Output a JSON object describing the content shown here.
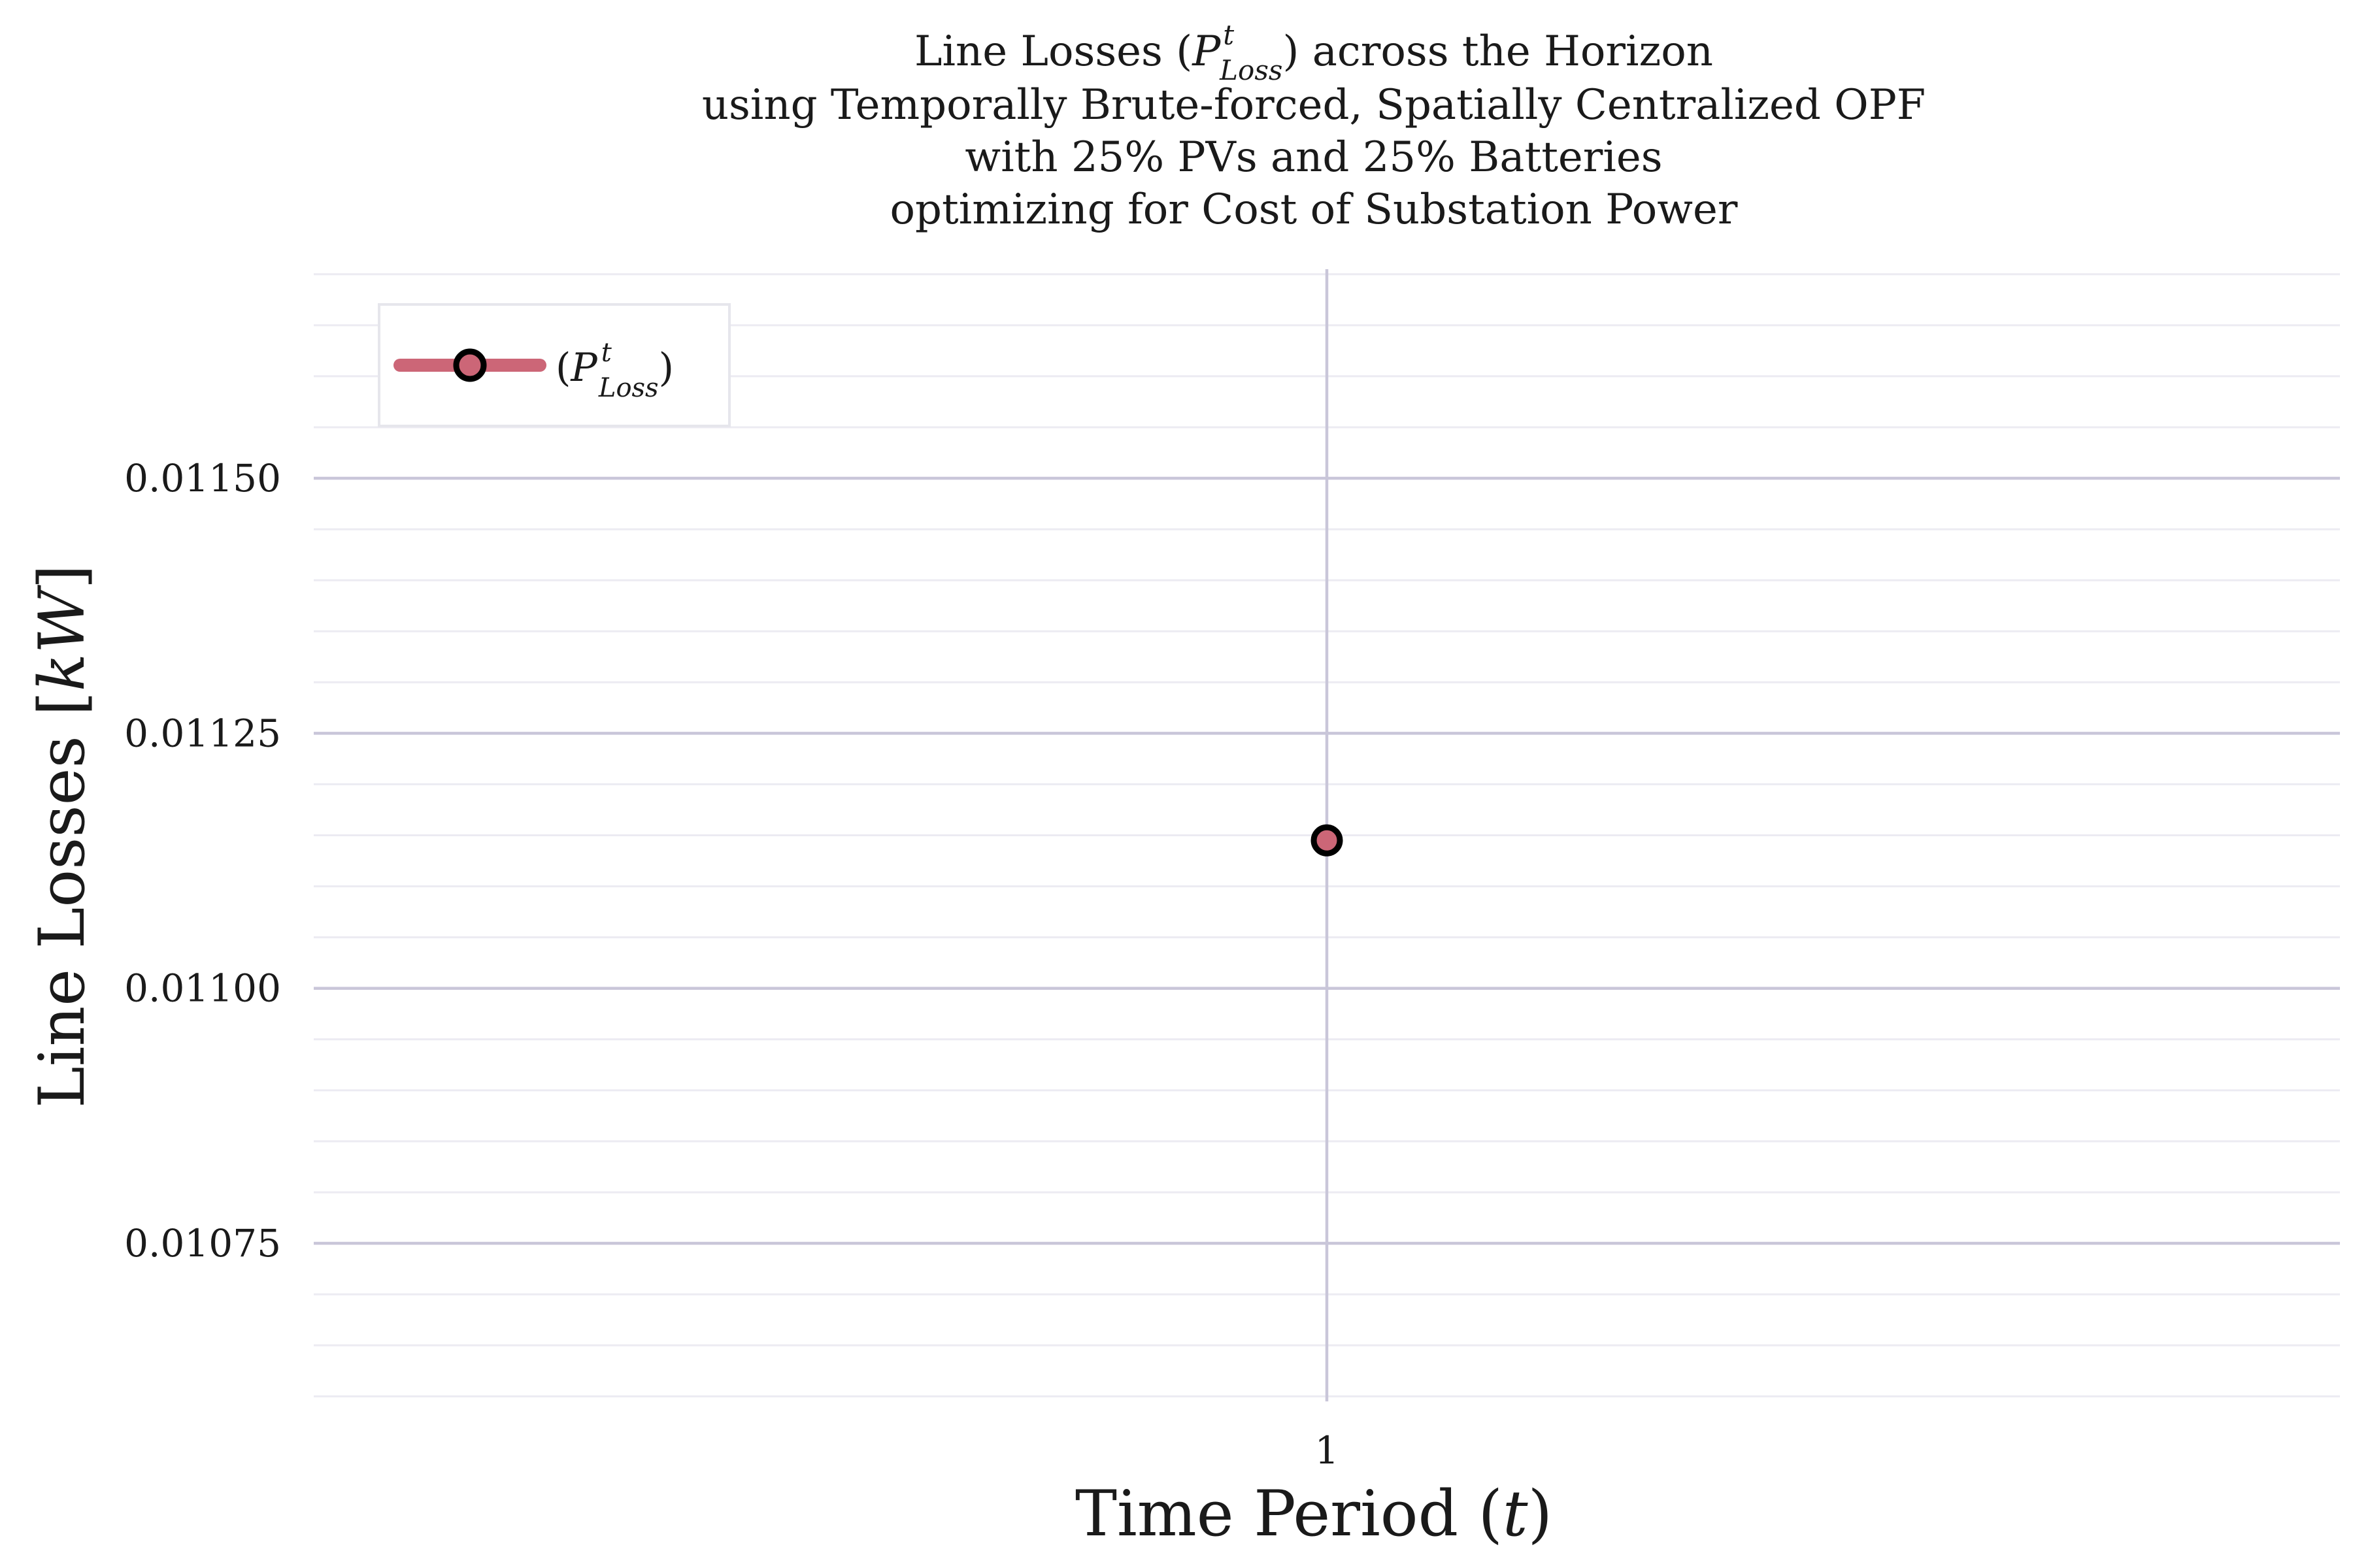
{
  "chart_data": {
    "type": "line",
    "title": {
      "line1_prefix": "Line Losses (",
      "line1_math_base": "P",
      "line1_math_sup": "t",
      "line1_math_sub": "Loss",
      "line1_suffix": ") across the Horizon",
      "line2": "using Temporally Brute-forced, Spatially Centralized OPF",
      "line3": "with 25% PVs and 25% Batteries",
      "line4": "optimizing for Cost of Substation Power"
    },
    "xlabel": {
      "prefix": "Time Period (",
      "math": "t",
      "suffix": ")"
    },
    "ylabel": {
      "prefix": "Line Losses [",
      "math": "kW",
      "suffix": "]"
    },
    "x": [
      1
    ],
    "x_tick_labels": [
      "1"
    ],
    "series": [
      {
        "name": "(P^t_Loss)",
        "name_prefix": "(",
        "name_math_base": "P",
        "name_math_sup": "t",
        "name_math_sub": "Loss",
        "name_suffix": ")",
        "values": [
          0.011145
        ],
        "color": "#cc6677",
        "marker_edge_color": "#000000"
      }
    ],
    "ylim": [
      0.010595,
      0.011705
    ],
    "xlim": [
      0,
      2
    ],
    "y_ticks": [
      0.01075,
      0.011,
      0.01125,
      0.0115
    ],
    "y_tick_labels": [
      "0.01075",
      "0.01100",
      "0.01125",
      "0.01150"
    ],
    "grid": true,
    "minor_grid": true,
    "legend_position": "top-left",
    "colors": {
      "major_grid": "#c9c6d9",
      "minor_grid": "#ecebf2",
      "text": "#1a1a1a"
    }
  }
}
